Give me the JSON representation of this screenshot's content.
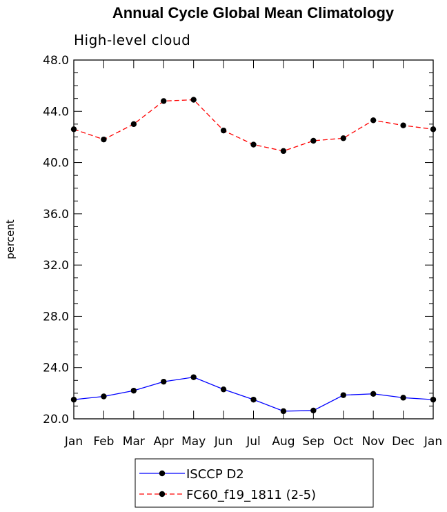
{
  "chart_data": {
    "type": "line",
    "title": "Annual Cycle Global Mean Climatology",
    "subtitle": "High-level cloud",
    "xlabel": "",
    "ylabel": "percent",
    "categories": [
      "Jan",
      "Feb",
      "Mar",
      "Apr",
      "May",
      "Jun",
      "Jul",
      "Aug",
      "Sep",
      "Oct",
      "Nov",
      "Dec",
      "Jan"
    ],
    "ylim": [
      20.0,
      48.0
    ],
    "yticks": [
      "20.0",
      "24.0",
      "28.0",
      "32.0",
      "36.0",
      "40.0",
      "44.0",
      "48.0"
    ],
    "grid": false,
    "legend_position": "bottom",
    "series": [
      {
        "name": "ISCCP D2",
        "color": "#0000ff",
        "dash": "solid",
        "values": [
          21.5,
          21.75,
          22.2,
          22.9,
          23.25,
          22.3,
          21.5,
          20.6,
          20.65,
          21.85,
          21.95,
          21.65,
          21.5
        ]
      },
      {
        "name": "FC60_f19_1811 (2-5)",
        "color": "#ff0000",
        "dash": "dashed",
        "values": [
          42.6,
          41.8,
          43.0,
          44.8,
          44.9,
          42.5,
          41.4,
          40.9,
          41.7,
          41.9,
          43.3,
          42.9,
          42.6
        ]
      }
    ]
  }
}
